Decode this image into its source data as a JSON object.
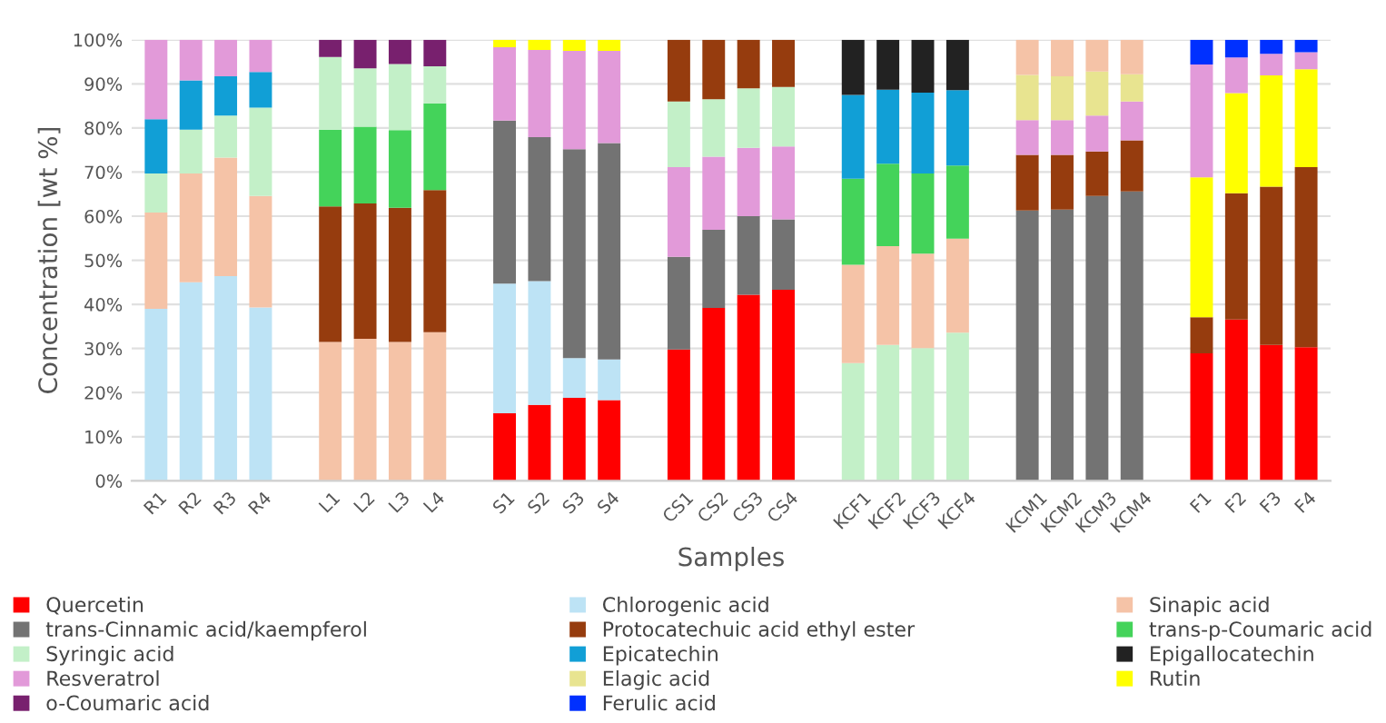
{
  "chart_data": {
    "type": "bar",
    "stacked": true,
    "xlabel": "Samples",
    "ylabel": "Concentration [wt %]",
    "categories": [
      "R1",
      "R2",
      "R3",
      "R4",
      null,
      "L1",
      "L2",
      "L3",
      "L4",
      null,
      "S1",
      "S2",
      "S3",
      "S4",
      null,
      "CS1",
      "CS2",
      "CS3",
      "CS4",
      null,
      "KCF1",
      "KCF2",
      "KCF3",
      "KCF4",
      null,
      "KCM1",
      "KCM2",
      "KCM3",
      "KCM4",
      null,
      "F1",
      "F2",
      "F3",
      "F4"
    ],
    "ylim": [
      0,
      100
    ],
    "yticks": [
      {
        "value": 0,
        "label": "0%"
      },
      {
        "value": 10,
        "label": "10%"
      },
      {
        "value": 20,
        "label": "20%"
      },
      {
        "value": 30,
        "label": "30%"
      },
      {
        "value": 40,
        "label": "40%"
      },
      {
        "value": 50,
        "label": "50%"
      },
      {
        "value": 60,
        "label": "60%"
      },
      {
        "value": 70,
        "label": "70%"
      },
      {
        "value": 80,
        "label": "80%"
      },
      {
        "value": 90,
        "label": "90%"
      },
      {
        "value": 100,
        "label": "100%"
      }
    ],
    "grid": "y",
    "legend": "bottom",
    "series": [
      {
        "name": "Quercetin",
        "color": "#ff0000",
        "values": [
          null,
          null,
          null,
          null,
          null,
          null,
          null,
          null,
          null,
          null,
          15.3,
          17.2,
          18.8,
          18.3,
          null,
          29.8,
          39.2,
          42.2,
          43.3,
          null,
          null,
          null,
          null,
          null,
          null,
          null,
          null,
          null,
          null,
          null,
          28.9,
          36.6,
          30.8,
          30.3
        ]
      },
      {
        "name": "Chlorogenic acid",
        "color": "#bde3f5",
        "values": [
          39,
          45,
          46.4,
          39.3,
          null,
          null,
          null,
          null,
          null,
          null,
          29.4,
          28.1,
          9,
          9.2,
          null,
          null,
          null,
          null,
          null,
          null,
          null,
          null,
          null,
          null,
          null,
          null,
          null,
          null,
          null,
          null,
          null,
          null,
          null,
          null
        ]
      },
      {
        "color": "#c3f0c8",
        "values": [
          null,
          null,
          null,
          null,
          null,
          null,
          null,
          null,
          null,
          null,
          null,
          null,
          null,
          null,
          null,
          null,
          null,
          null,
          null,
          null,
          26.7,
          30.8,
          30.1,
          33.6,
          null,
          null,
          null,
          null,
          null,
          null,
          null,
          null,
          null,
          null
        ]
      },
      {
        "name": "Sinapic acid",
        "color": "#f5c3a7",
        "values": [
          21.8,
          24.7,
          26.9,
          25.3,
          null,
          31.5,
          32.2,
          31.5,
          33.7,
          null,
          null,
          null,
          null,
          null,
          null,
          null,
          null,
          null,
          null,
          null,
          22.3,
          22.4,
          21.4,
          21.3,
          null,
          null,
          null,
          null,
          null,
          null,
          null,
          null,
          null,
          null
        ]
      },
      {
        "name": "trans-Cinnamic acid/kaempferol",
        "color": "#737373",
        "values": [
          null,
          null,
          null,
          null,
          null,
          null,
          null,
          null,
          null,
          null,
          37,
          32.6,
          47.4,
          49.1,
          null,
          21,
          17.7,
          17.8,
          16,
          null,
          null,
          null,
          null,
          null,
          null,
          61.3,
          61.5,
          64.6,
          65.6,
          null,
          null,
          null,
          null,
          null
        ]
      },
      {
        "name": "Protocatechuic acid ethyl ester",
        "color": "#963c0e",
        "values": [
          null,
          null,
          null,
          null,
          null,
          30.7,
          30.7,
          30.4,
          32.2,
          null,
          null,
          null,
          null,
          null,
          null,
          null,
          null,
          null,
          null,
          null,
          null,
          null,
          null,
          null,
          null,
          12.6,
          12.4,
          10.1,
          11.6,
          null,
          8.2,
          28.6,
          35.9,
          40.8
        ]
      },
      {
        "name": "trans-p-Coumaric acid",
        "color": "#44d35a",
        "values": [
          null,
          null,
          null,
          null,
          null,
          17.4,
          17.4,
          17.6,
          19.7,
          null,
          null,
          null,
          null,
          null,
          null,
          null,
          null,
          null,
          null,
          null,
          19.5,
          18.7,
          18.2,
          16.6,
          null,
          null,
          null,
          null,
          null,
          null,
          null,
          null,
          null,
          null
        ]
      },
      {
        "name": "Syringic acid",
        "color": "#c3f0c8",
        "values": [
          8.9,
          9.9,
          9.5,
          20,
          null,
          16.5,
          13.2,
          15,
          8.4,
          null,
          null,
          null,
          null,
          null,
          null,
          null,
          null,
          null,
          null,
          null,
          null,
          null,
          null,
          null,
          null,
          null,
          null,
          null,
          null,
          null,
          null,
          null,
          null,
          null
        ]
      },
      {
        "name": "Epicatechin",
        "color": "#119fd6",
        "values": [
          12.3,
          11.2,
          8.9,
          8.1,
          null,
          null,
          null,
          null,
          null,
          null,
          null,
          null,
          null,
          null,
          null,
          null,
          null,
          null,
          null,
          null,
          19,
          16.8,
          18.3,
          17.1,
          null,
          null,
          null,
          null,
          null,
          null,
          null,
          null,
          null,
          null
        ]
      },
      {
        "name": "Epigallocatechin",
        "color": "#222222",
        "values": [
          null,
          null,
          null,
          null,
          null,
          null,
          null,
          null,
          null,
          null,
          null,
          null,
          null,
          null,
          null,
          null,
          null,
          null,
          null,
          null,
          12.5,
          11.3,
          12,
          11.4,
          null,
          null,
          null,
          null,
          null,
          null,
          null,
          null,
          null,
          null
        ]
      },
      {
        "name": "Resveratrol",
        "color": "#e29ad9",
        "values": [
          18,
          9.2,
          8.3,
          7.3,
          null,
          null,
          null,
          null,
          null,
          null,
          16.6,
          19.8,
          22.3,
          20.9,
          null,
          20.3,
          16.6,
          15.5,
          16.5,
          null,
          null,
          null,
          null,
          null,
          null,
          7.9,
          7.9,
          8.1,
          8.8,
          null,
          null,
          null,
          null,
          null
        ]
      },
      {
        "color": "#c3f0c8",
        "values": [
          null,
          null,
          null,
          null,
          null,
          null,
          null,
          null,
          null,
          null,
          null,
          null,
          null,
          null,
          null,
          14.9,
          13,
          13.5,
          13.5,
          null,
          null,
          null,
          null,
          null,
          null,
          null,
          null,
          null,
          null,
          null,
          null,
          null,
          null,
          null
        ]
      },
      {
        "color": "#963c0e",
        "values": [
          null,
          null,
          null,
          null,
          null,
          null,
          null,
          null,
          null,
          null,
          null,
          null,
          null,
          null,
          null,
          14,
          13.5,
          11,
          10.7,
          null,
          null,
          null,
          null,
          null,
          null,
          null,
          null,
          null,
          null,
          null,
          null,
          null,
          null,
          null
        ]
      },
      {
        "name": "Elagic acid",
        "color": "#e8e490",
        "values": [
          null,
          null,
          null,
          null,
          null,
          null,
          null,
          null,
          null,
          null,
          null,
          null,
          null,
          null,
          null,
          null,
          null,
          null,
          null,
          null,
          null,
          null,
          null,
          null,
          null,
          10.2,
          9.9,
          10,
          6.2,
          null,
          null,
          null,
          null,
          null
        ]
      },
      {
        "color": "#f5c3a7",
        "values": [
          null,
          null,
          null,
          null,
          null,
          null,
          null,
          null,
          null,
          null,
          null,
          null,
          null,
          null,
          null,
          null,
          null,
          null,
          null,
          null,
          null,
          null,
          null,
          null,
          null,
          8,
          8.3,
          7.2,
          7.8,
          null,
          null,
          null,
          null,
          null
        ]
      },
      {
        "name": "Rutin",
        "color": "#ffff00",
        "values": [
          null,
          null,
          null,
          null,
          null,
          null,
          null,
          null,
          null,
          null,
          1.7,
          2.3,
          2.5,
          2.5,
          null,
          null,
          null,
          null,
          null,
          null,
          null,
          null,
          null,
          null,
          null,
          null,
          null,
          null,
          null,
          null,
          31.7,
          22.7,
          25.2,
          22.2
        ]
      },
      {
        "color": "#e29ad9",
        "values": [
          null,
          null,
          null,
          null,
          null,
          null,
          null,
          null,
          null,
          null,
          null,
          null,
          null,
          null,
          null,
          null,
          null,
          null,
          null,
          null,
          null,
          null,
          null,
          null,
          null,
          null,
          null,
          null,
          null,
          null,
          25.6,
          8.1,
          4.9,
          3.9
        ]
      },
      {
        "name": "o-Coumaric acid",
        "color": "#78206e",
        "values": [
          null,
          null,
          null,
          null,
          null,
          3.9,
          6.5,
          5.5,
          6,
          null,
          null,
          null,
          null,
          null,
          null,
          null,
          null,
          null,
          null,
          null,
          null,
          null,
          null,
          null,
          null,
          null,
          null,
          null,
          null,
          null,
          null,
          null,
          null,
          null
        ]
      },
      {
        "name": "Ferulic acid",
        "color": "#0030ff",
        "values": [
          null,
          null,
          null,
          null,
          null,
          null,
          null,
          null,
          null,
          null,
          null,
          null,
          null,
          null,
          null,
          null,
          null,
          null,
          null,
          null,
          null,
          null,
          null,
          null,
          null,
          null,
          null,
          null,
          null,
          null,
          5.6,
          4,
          3.2,
          2.8
        ]
      }
    ]
  }
}
